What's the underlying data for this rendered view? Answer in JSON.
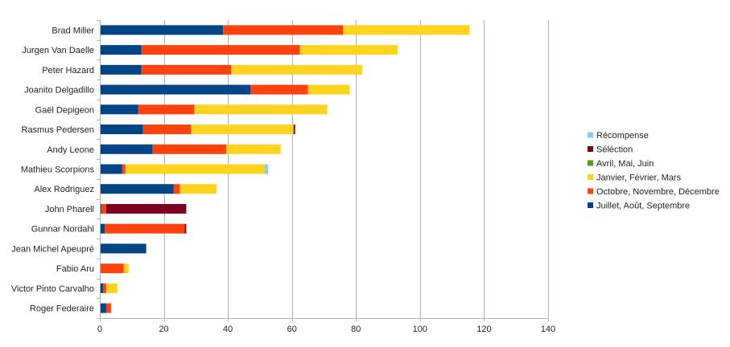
{
  "chart_data": {
    "type": "bar",
    "orientation": "horizontal",
    "stacked": true,
    "title": "",
    "xlabel": "",
    "ylabel": "",
    "xlim": [
      0,
      140
    ],
    "xticks": [
      0,
      20,
      40,
      60,
      80,
      100,
      120,
      140
    ],
    "grid": true,
    "legend_position": "right",
    "categories": [
      "Brad Miller",
      "Jurgen Van Daelle",
      "Peter Hazard",
      "Joanito Delgadillo",
      "Gaël Depigeon",
      "Rasmus Pedersen",
      "Andy Leone",
      "Mathieu Scorpions",
      "Alex Rodriguez",
      "John Pharell",
      "Gunnar Nordahl",
      "Jean Michel Apeupré",
      "Fabio Aru",
      "Victor Pinto Carvalho",
      "Roger Federaire"
    ],
    "series": [
      {
        "name": "Juillet, Août, Septembre",
        "color": "#004586",
        "values": [
          38.5,
          13,
          13,
          47,
          12,
          13.5,
          16.5,
          7,
          23,
          0.5,
          1.5,
          14.5,
          0,
          1,
          2
        ]
      },
      {
        "name": "Octobre, Novembre, Décembre",
        "color": "#ff420e",
        "values": [
          37.5,
          49.5,
          28,
          18,
          17.5,
          15,
          23,
          1,
          2,
          1.5,
          25,
          0,
          7.5,
          1,
          1.5
        ]
      },
      {
        "name": "Janvier, Février, Mars",
        "color": "#ffd320",
        "values": [
          39.5,
          30.5,
          41,
          13,
          41.5,
          32,
          17,
          43.5,
          11.5,
          0,
          0,
          0,
          1.5,
          3.5,
          0
        ]
      },
      {
        "name": "Avril, Mai, Juin",
        "color": "#579d1c",
        "values": [
          0,
          0,
          0,
          0,
          0,
          0,
          0,
          0,
          0,
          0,
          0,
          0,
          0,
          0,
          0
        ]
      },
      {
        "name": "Séléction",
        "color": "#7e0021",
        "values": [
          0,
          0,
          0,
          0,
          0,
          0.5,
          0,
          0,
          0,
          25,
          0.5,
          0,
          0,
          0,
          0
        ]
      },
      {
        "name": "Récompense",
        "color": "#83caff",
        "values": [
          0,
          0,
          0,
          0,
          0,
          0,
          0,
          1,
          0,
          0,
          0,
          0,
          0,
          0,
          0
        ]
      }
    ]
  }
}
